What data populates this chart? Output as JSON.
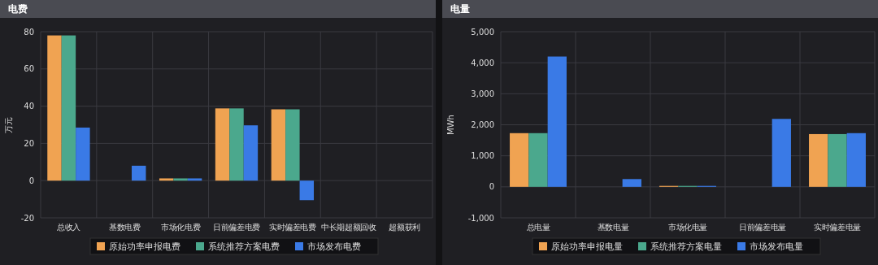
{
  "chart_data": [
    {
      "type": "bar",
      "title": "电费",
      "ylabel": "万元",
      "categories": [
        "总收入",
        "基数电费",
        "市场化电费",
        "日前偏差电费",
        "实时偏差电费",
        "中长期超额回收",
        "超额获利"
      ],
      "series": [
        {
          "name": "原始功率申报电费",
          "color": "#f0a352",
          "values": [
            78,
            0,
            1.2,
            38.8,
            38.3,
            null,
            null
          ]
        },
        {
          "name": "系统推荐方案电费",
          "color": "#4ba88d",
          "values": [
            78,
            0,
            1.2,
            38.8,
            38.3,
            null,
            null
          ]
        },
        {
          "name": "市场发布电费",
          "color": "#3a7ae6",
          "values": [
            28.5,
            8,
            1.2,
            29.7,
            -10.5,
            null,
            null
          ]
        }
      ],
      "ylim": [
        -20,
        80
      ],
      "yticks": [
        -20,
        0,
        20,
        40,
        60,
        80
      ],
      "grid": true,
      "legend": "bottom"
    },
    {
      "type": "bar",
      "title": "电量",
      "ylabel": "MWh",
      "categories": [
        "总电量",
        "基数电量",
        "市场化电量",
        "日前偏差电量",
        "实时偏差电量"
      ],
      "series": [
        {
          "name": "原始功率申报电量",
          "color": "#f0a352",
          "values": [
            1730,
            0,
            30,
            0,
            1700
          ]
        },
        {
          "name": "系统推荐方案电量",
          "color": "#4ba88d",
          "values": [
            1730,
            0,
            30,
            0,
            1700
          ]
        },
        {
          "name": "市场发布电量",
          "color": "#3a7ae6",
          "values": [
            4200,
            250,
            30,
            2190,
            1730
          ]
        }
      ],
      "ylim": [
        -1000,
        5000
      ],
      "yticks": [
        {
          "value": -1000,
          "label": "-1,000"
        },
        0,
        {
          "value": 1000,
          "label": "1,000"
        },
        {
          "value": 2000,
          "label": "2,000"
        },
        {
          "value": 3000,
          "label": "3,000"
        },
        {
          "value": 4000,
          "label": "4,000"
        },
        {
          "value": 5000,
          "label": "5,000"
        }
      ],
      "grid": true,
      "legend": "bottom"
    }
  ]
}
